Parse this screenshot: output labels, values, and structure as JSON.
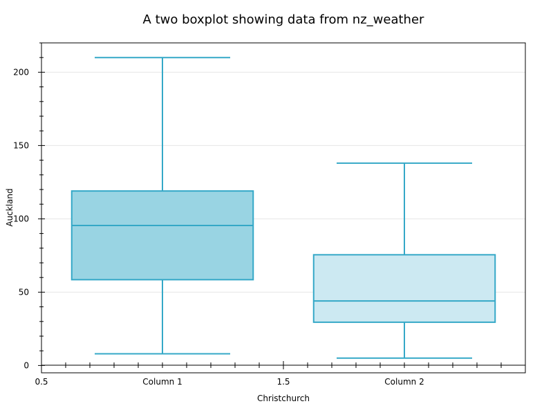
{
  "chart_data": {
    "type": "boxplot",
    "title": "A two boxplot showing data from nz_weather",
    "xlabel": "Christchurch",
    "ylabel": "Auckland",
    "xlim": [
      0.5,
      2.5
    ],
    "ylim": [
      -5,
      220
    ],
    "x_ticks": [
      {
        "value": 0.5,
        "label": "0.5"
      },
      {
        "value": 1.0,
        "label": "Column 1"
      },
      {
        "value": 1.5,
        "label": "1.5"
      },
      {
        "value": 2.0,
        "label": "Column 2"
      }
    ],
    "y_ticks": [
      0,
      50,
      100,
      150,
      200
    ],
    "grid": "horizontal",
    "categories": [
      "Column 1",
      "Column 2"
    ],
    "boxes": [
      {
        "position": 1,
        "whisker_low": 8,
        "q1": 58.5,
        "median": 95.5,
        "q3": 119,
        "whisker_high": 210,
        "fill": "#99d4e3"
      },
      {
        "position": 2,
        "whisker_low": 5,
        "q1": 29.5,
        "median": 44,
        "q3": 75.5,
        "whisker_high": 138,
        "fill": "#cce9f2"
      }
    ],
    "colors": {
      "stroke": "#34a8c7"
    }
  }
}
